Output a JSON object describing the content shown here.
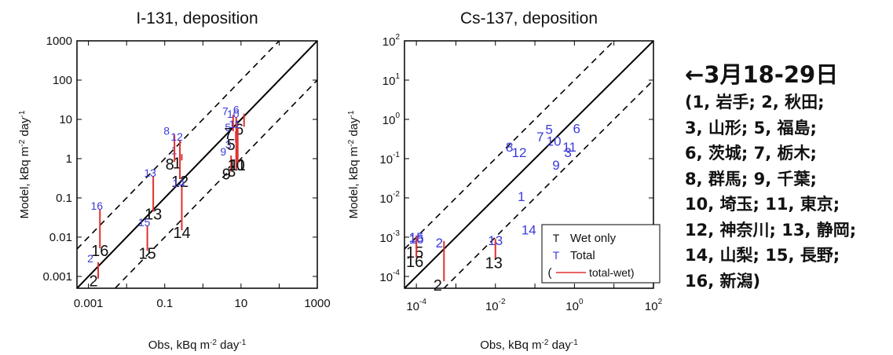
{
  "chart_data": [
    {
      "type": "scatter",
      "title": "I-131, deposition",
      "xlabel": "Obs, kBq m",
      "ylabel": "Model, kBq m",
      "units_tail": [
        "-2",
        " day",
        "-1"
      ],
      "scale": "log",
      "xlim": [
        0.0005,
        1000
      ],
      "ylim": [
        0.0005,
        1000
      ],
      "x_ticks": [
        "0.001",
        "0.1",
        "10",
        "1000"
      ],
      "y_ticks": [
        "0.001",
        "0.01",
        "0.1",
        "1",
        "10",
        "100",
        "1000"
      ],
      "reference_lines": [
        "y = x",
        "y = 10x",
        "y = x/10"
      ],
      "points": [
        {
          "label": "1",
          "x": 0.28,
          "wet": 0.9,
          "total": 1.3
        },
        {
          "label": "2",
          "x": 0.0018,
          "wet": 0.00088,
          "total": 0.0023
        },
        {
          "label": "3",
          "x": 7.5,
          "wet": 0.55,
          "total": 1.8
        },
        {
          "label": "5",
          "x": 7.3,
          "wet": 2.6,
          "total": 5
        },
        {
          "label": "6",
          "x": 12,
          "wet": 6.5,
          "total": 14
        },
        {
          "label": "7",
          "x": 6.2,
          "wet": 5,
          "total": 13
        },
        {
          "label": "8",
          "x": 0.18,
          "wet": 0.83,
          "total": 4.1
        },
        {
          "label": "9",
          "x": 5.5,
          "wet": 0.47,
          "total": 1.2
        },
        {
          "label": "10",
          "x": 7.5,
          "wet": 0.8,
          "total": 11
        },
        {
          "label": "11",
          "x": 8.2,
          "wet": 0.8,
          "total": 6
        },
        {
          "label": "12",
          "x": 0.25,
          "wet": 0.3,
          "total": 2.9
        },
        {
          "label": "13",
          "x": 0.05,
          "wet": 0.045,
          "total": 0.35
        },
        {
          "label": "14",
          "x": 0.28,
          "wet": 0.015,
          "total": 0.19
        },
        {
          "label": "15",
          "x": 0.035,
          "wet": 0.0045,
          "total": 0.019
        },
        {
          "label": "16",
          "x": 0.002,
          "wet": 0.0052,
          "total": 0.05
        }
      ]
    },
    {
      "type": "scatter",
      "title": "Cs-137, deposition",
      "xlabel": "Obs, kBq m",
      "ylabel": "Model, kBq m",
      "units_tail": [
        "-2",
        " day",
        "-1"
      ],
      "scale": "log",
      "xlim": [
        5e-05,
        100
      ],
      "ylim": [
        5e-05,
        100
      ],
      "x_ticks_exp": [
        -4,
        -2,
        0,
        2
      ],
      "y_ticks_exp": [
        -4,
        -3,
        -2,
        -1,
        0,
        1,
        2
      ],
      "reference_lines": [
        "y = x",
        "y = 10x",
        "y = x/10"
      ],
      "points": [
        {
          "label": "1",
          "x": 0.06,
          "total": 0.012
        },
        {
          "label": "2",
          "x": 0.0005,
          "wet": 7.5e-05,
          "total": 0.0008
        },
        {
          "label": "3",
          "x": 0.9,
          "total": 0.16
        },
        {
          "label": "5",
          "x": 0.3,
          "total": 0.62
        },
        {
          "label": "6",
          "x": 1.5,
          "total": 0.65
        },
        {
          "label": "7",
          "x": 0.18,
          "total": 0.4
        },
        {
          "label": "8",
          "x": 0.03,
          "total": 0.22
        },
        {
          "label": "9",
          "x": 0.45,
          "total": 0.075
        },
        {
          "label": "10",
          "x": 0.3,
          "total": 0.31
        },
        {
          "label": "11",
          "x": 0.75,
          "total": 0.22
        },
        {
          "label": "12",
          "x": 0.04,
          "total": 0.16
        },
        {
          "label": "13",
          "x": 0.01,
          "wet": 0.00028,
          "total": 0.0009
        },
        {
          "label": "14",
          "x": 0.07,
          "total": 0.0017
        },
        {
          "label": "15",
          "x": 0.0001,
          "wet": 0.00052,
          "total": 0.0011
        },
        {
          "label": "16",
          "x": 0.0001,
          "wet": 0.0003,
          "total": 0.001
        }
      ],
      "legend": {
        "position": "bottom-right",
        "entries": [
          {
            "marker": "T",
            "label": "Wet only",
            "color": "#111111"
          },
          {
            "marker": "T",
            "label": "Total",
            "color": "#3b3bdb"
          },
          {
            "marker": "line",
            "label": "total-wet",
            "color": "#e03030"
          }
        ]
      }
    }
  ],
  "colors": {
    "wet": "#111111",
    "total": "#3b3bdb",
    "diff": "#e03030",
    "axis": "#000000"
  },
  "side_text": {
    "heading": "←3月18-29日",
    "lines": [
      "(1, 岩手; 2, 秋田;",
      "3, 山形; 5, 福島;",
      "6, 茨城; 7, 栃木;",
      "8, 群馬; 9, 千葉;",
      "10, 埼玉; 11, 東京;",
      "12, 神奈川; 13, 静岡;",
      "14, 山梨; 15, 長野;",
      "16, 新潟)"
    ]
  }
}
